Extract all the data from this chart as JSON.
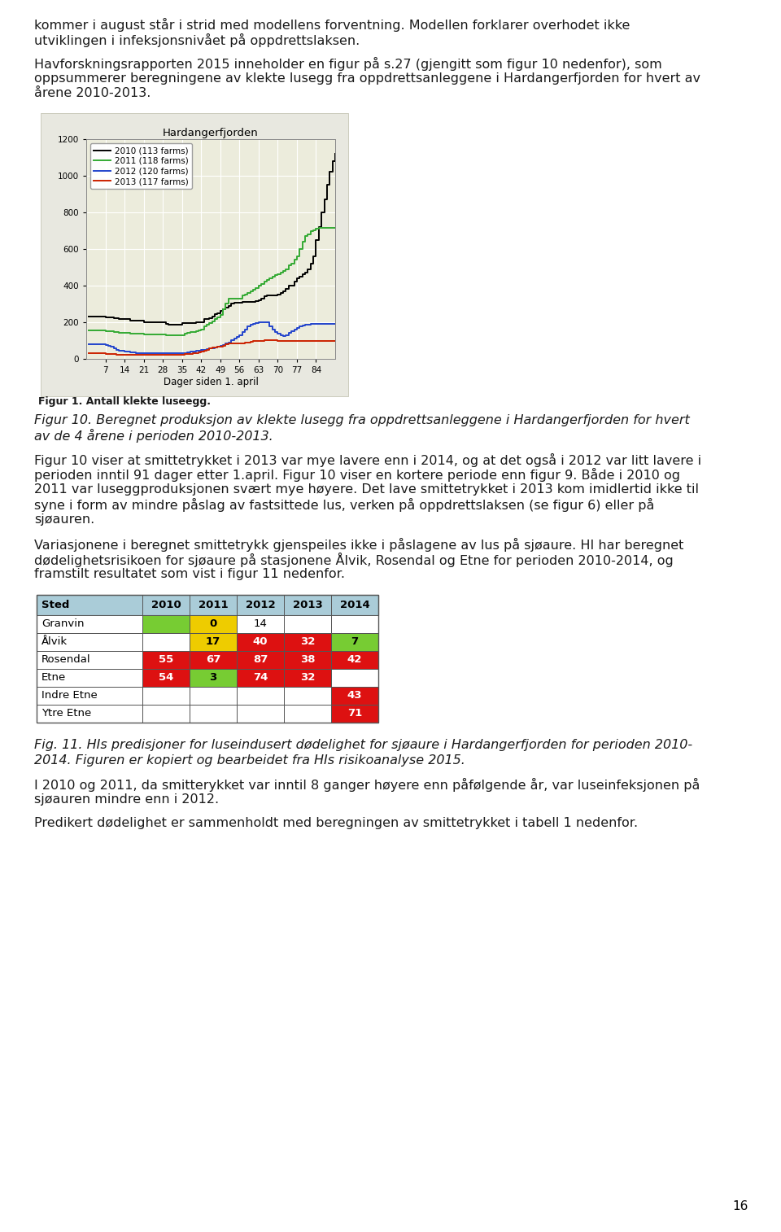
{
  "page_bg": "#ffffff",
  "top_text_1": "kommer i august står i strid med modellens forventning. Modellen forklarer overhodet ikke",
  "top_text_2": "utviklingen i infeksjonsnivået på oppdrettslaksen.",
  "top_text_3": "Havforskningsrapporten 2015 inneholder en figur på s.27 (gjengitt som figur 10 nedenfor), som",
  "top_text_4": "oppsummerer beregningene av klekte lusegg fra oppdrettsanleggene i Hardangerfjorden for hvert av",
  "top_text_5": "årene 2010-2013.",
  "chart_title": "Hardangerfjorden",
  "chart_xlabel": "Dager siden 1. april",
  "chart_ylabel_label": "Figur 1. Antall klekte luseegg.",
  "legend_labels": [
    "2010 (113 farms)",
    "2011 (118 farms)",
    "2012 (120 farms)",
    "2013 (117 farms)"
  ],
  "legend_colors": [
    "#000000",
    "#33aa33",
    "#2244cc",
    "#cc2200"
  ],
  "xlim": [
    0,
    91
  ],
  "ylim": [
    0,
    1200
  ],
  "yticks": [
    0,
    200,
    400,
    600,
    800,
    1000,
    1200
  ],
  "xticks": [
    7,
    14,
    21,
    28,
    35,
    42,
    49,
    56,
    63,
    70,
    77,
    84
  ],
  "chart_bg": "#ececdc",
  "fig10_text_1": "Figur 10. Beregnet produksjon av klekte lusegg fra oppdrettsanleggene i Hardangerfjorden for hvert",
  "fig10_text_2": "av de 4 årene i perioden 2010-2013.",
  "body_text_1": "Figur 10 viser at smittetrykket i 2013 var mye lavere enn i 2014, og at det også i 2012 var litt lavere i",
  "body_text_2": "perioden inntil 91 dager etter 1.april. Figur 10 viser en kortere periode enn figur 9. Både i 2010 og",
  "body_text_3": "2011 var luseggproduksjonen svært mye høyere. Det lave smittetrykket i 2013 kom imidlertid ikke til",
  "body_text_4": "syne i form av mindre påslag av fastsittede lus, verken på oppdrettslaksen (se figur 6) eller på",
  "body_text_5": "sjøauren.",
  "body_text_6": "Variasjonene i beregnet smittetrykk gjenspeiles ikke i påslagene av lus på sjøaure. HI har beregnet",
  "body_text_7": "dødelighetsrisikoen for sjøaure på stasjonene Ålvik, Rosendal og Etne for perioden 2010-2014, og",
  "body_text_8": "framstilt resultatet som vist i figur 11 nedenfor.",
  "table_header": [
    "Sted",
    "2010",
    "2011",
    "2012",
    "2013",
    "2014"
  ],
  "table_rows": [
    [
      "Granvin",
      "",
      "0",
      "14",
      "",
      ""
    ],
    [
      "Ålvik",
      "",
      "17",
      "40",
      "32",
      "7"
    ],
    [
      "Rosendal",
      "55",
      "67",
      "87",
      "38",
      "42"
    ],
    [
      "Etne",
      "54",
      "3",
      "74",
      "32",
      ""
    ],
    [
      "Indre Etne",
      "",
      "",
      "",
      "",
      "43"
    ],
    [
      "Ytre Etne",
      "",
      "",
      "",
      "",
      "71"
    ]
  ],
  "table_row_colors": [
    [
      "white",
      "green",
      "yellow",
      "white",
      "white",
      "white"
    ],
    [
      "white",
      "white",
      "yellow",
      "red",
      "red",
      "green"
    ],
    [
      "white",
      "red",
      "red",
      "red",
      "red",
      "red"
    ],
    [
      "white",
      "red",
      "green",
      "red",
      "red",
      "white"
    ],
    [
      "white",
      "white",
      "white",
      "white",
      "white",
      "red"
    ],
    [
      "white",
      "white",
      "white",
      "white",
      "white",
      "red"
    ]
  ],
  "fig11_text_1": "Fig. 11. HIs predisjoner for luseindusert dødelighet for sjøaure i Hardangerfjorden for perioden 2010-",
  "fig11_text_2": "2014. Figuren er kopiert og bearbeidet fra HIs risikoanalyse 2015.",
  "bottom_text_1": "I 2010 og 2011, da smitterykket var inntil 8 ganger høyere enn påfølgende år, var luseinfeksjonen på",
  "bottom_text_2": "sjøauren mindre enn i 2012.",
  "bottom_text_3": "Predikert dødelighet er sammenholdt med beregningen av smittetrykket i tabell 1 nedenfor.",
  "page_number": "16",
  "x_data": [
    1,
    2,
    3,
    4,
    5,
    6,
    7,
    8,
    9,
    10,
    11,
    12,
    13,
    14,
    15,
    16,
    17,
    18,
    19,
    20,
    21,
    22,
    23,
    24,
    25,
    26,
    27,
    28,
    29,
    30,
    31,
    32,
    33,
    34,
    35,
    36,
    37,
    38,
    39,
    40,
    41,
    42,
    43,
    44,
    45,
    46,
    47,
    48,
    49,
    50,
    51,
    52,
    53,
    54,
    55,
    56,
    57,
    58,
    59,
    60,
    61,
    62,
    63,
    64,
    65,
    66,
    67,
    68,
    69,
    70,
    71,
    72,
    73,
    74,
    75,
    76,
    77,
    78,
    79,
    80,
    81,
    82,
    83,
    84,
    85,
    86,
    87,
    88,
    89,
    90,
    91
  ],
  "y2010": [
    230,
    230,
    230,
    230,
    230,
    230,
    225,
    225,
    225,
    220,
    220,
    215,
    215,
    215,
    215,
    210,
    210,
    210,
    210,
    210,
    200,
    200,
    200,
    200,
    200,
    200,
    200,
    200,
    190,
    185,
    185,
    185,
    185,
    185,
    195,
    195,
    195,
    195,
    195,
    200,
    200,
    200,
    215,
    215,
    220,
    230,
    245,
    250,
    260,
    270,
    280,
    290,
    300,
    305,
    305,
    305,
    310,
    310,
    310,
    310,
    310,
    315,
    320,
    330,
    340,
    345,
    345,
    345,
    345,
    350,
    360,
    370,
    380,
    400,
    400,
    420,
    440,
    450,
    460,
    470,
    490,
    520,
    560,
    650,
    720,
    800,
    870,
    950,
    1020,
    1080,
    1120
  ],
  "y2011": [
    155,
    155,
    155,
    155,
    155,
    155,
    150,
    150,
    150,
    145,
    145,
    140,
    140,
    140,
    140,
    135,
    135,
    135,
    135,
    135,
    133,
    133,
    133,
    133,
    133,
    133,
    133,
    133,
    130,
    128,
    128,
    128,
    128,
    128,
    130,
    135,
    140,
    145,
    145,
    150,
    155,
    160,
    175,
    185,
    195,
    205,
    215,
    225,
    240,
    270,
    300,
    330,
    330,
    330,
    330,
    330,
    345,
    350,
    360,
    370,
    375,
    385,
    400,
    410,
    420,
    430,
    440,
    450,
    455,
    460,
    470,
    480,
    490,
    510,
    520,
    540,
    560,
    600,
    640,
    670,
    680,
    695,
    700,
    710,
    715,
    715,
    715,
    715,
    715,
    715,
    715
  ],
  "y2012": [
    80,
    80,
    80,
    80,
    80,
    80,
    75,
    72,
    68,
    55,
    50,
    45,
    42,
    40,
    38,
    35,
    33,
    32,
    31,
    30,
    30,
    30,
    30,
    30,
    30,
    30,
    30,
    30,
    30,
    30,
    30,
    30,
    30,
    30,
    30,
    32,
    35,
    38,
    40,
    42,
    45,
    48,
    50,
    52,
    55,
    58,
    62,
    65,
    70,
    75,
    82,
    90,
    100,
    110,
    120,
    130,
    145,
    160,
    175,
    185,
    190,
    195,
    200,
    200,
    200,
    200,
    175,
    160,
    145,
    135,
    130,
    125,
    130,
    140,
    150,
    160,
    170,
    175,
    180,
    185,
    188,
    190,
    190,
    190,
    190,
    190,
    190,
    190,
    190,
    190,
    190
  ],
  "y2013": [
    30,
    30,
    30,
    30,
    30,
    30,
    28,
    27,
    26,
    25,
    23,
    22,
    22,
    22,
    22,
    22,
    22,
    22,
    22,
    22,
    22,
    22,
    22,
    22,
    22,
    22,
    22,
    22,
    22,
    22,
    22,
    22,
    22,
    22,
    22,
    24,
    26,
    28,
    30,
    32,
    35,
    38,
    42,
    48,
    55,
    60,
    62,
    65,
    68,
    72,
    78,
    82,
    82,
    82,
    82,
    82,
    85,
    88,
    90,
    92,
    95,
    95,
    95,
    98,
    100,
    100,
    100,
    100,
    100,
    98,
    97,
    97,
    97,
    97,
    97,
    97,
    97,
    97,
    97,
    97,
    97,
    97,
    97,
    97,
    97,
    97,
    97,
    97,
    97,
    97,
    97
  ]
}
